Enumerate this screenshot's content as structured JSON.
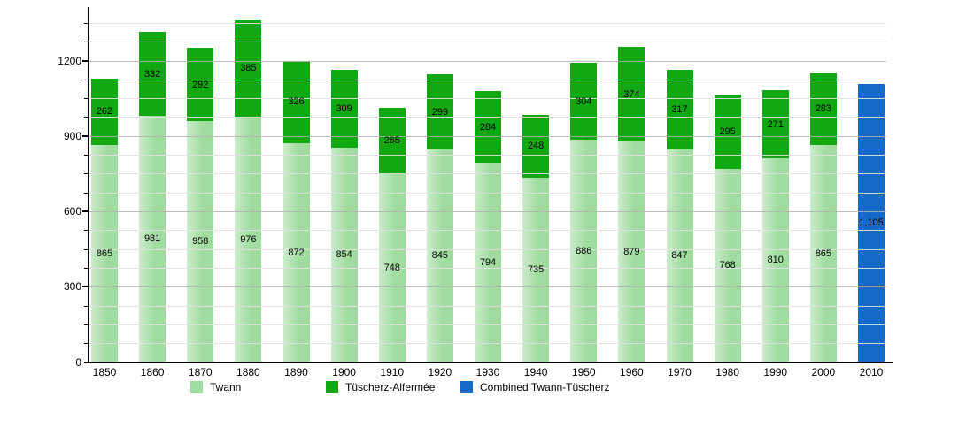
{
  "chart_data": {
    "type": "bar",
    "stacked": true,
    "title": "",
    "xlabel": "",
    "ylabel": "",
    "categories": [
      "1850",
      "1860",
      "1870",
      "1880",
      "1890",
      "1900",
      "1910",
      "1920",
      "1930",
      "1940",
      "1950",
      "1960",
      "1970",
      "1980",
      "1990",
      "2000",
      "2010"
    ],
    "series": [
      {
        "name": "Twann",
        "color": "#a0dca0",
        "values": [
          865,
          981,
          958,
          976,
          872,
          854,
          748,
          845,
          794,
          735,
          886,
          879,
          847,
          768,
          810,
          865,
          null
        ]
      },
      {
        "name": "Tüscherz-Alfermée",
        "color": "#12a812",
        "values": [
          262,
          332,
          292,
          385,
          326,
          309,
          265,
          299,
          284,
          248,
          304,
          374,
          317,
          295,
          271,
          283,
          null
        ]
      },
      {
        "name": "Combined Twann-Tüscherz",
        "color": "#1569c8",
        "values": [
          null,
          null,
          null,
          null,
          null,
          null,
          null,
          null,
          null,
          null,
          null,
          null,
          null,
          null,
          null,
          null,
          1105
        ]
      }
    ],
    "ylim": [
      0,
      1425
    ],
    "yticks": [
      0,
      300,
      600,
      900,
      1200
    ],
    "minor_grid_step": 75,
    "grid": true,
    "grid_on_top_of_bars": true,
    "legend_position": "bottom",
    "value_labels_inside_segments": true
  }
}
